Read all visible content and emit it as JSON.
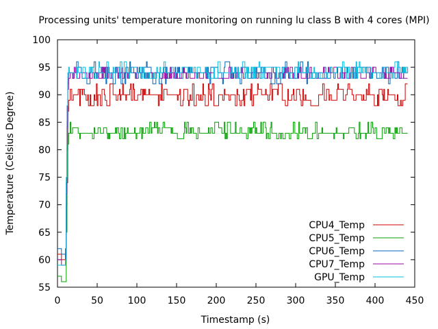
{
  "chart_data": {
    "type": "line",
    "title": "Processing units' temperature monitoring on running lu class B with 4 cores (MPI)",
    "xlabel": "Timestamp (s)",
    "ylabel": "Temperature (Celsius Degree)",
    "xlim": [
      0,
      450
    ],
    "ylim": [
      55,
      100
    ],
    "xticks": [
      0,
      50,
      100,
      150,
      200,
      250,
      300,
      350,
      400,
      450
    ],
    "yticks": [
      55,
      60,
      65,
      70,
      75,
      80,
      85,
      90,
      95,
      100
    ],
    "grid": false,
    "legend_position": "bottom-right",
    "x_end": 441,
    "series": [
      {
        "name": "CPU4_Temp",
        "color": "#cc0000",
        "startup": [
          [
            0,
            61
          ],
          [
            4,
            61
          ],
          [
            5,
            60
          ],
          [
            9,
            60
          ],
          [
            10,
            61
          ],
          [
            11,
            70
          ],
          [
            12,
            80
          ],
          [
            13,
            87
          ],
          [
            14,
            89
          ]
        ],
        "plateau": {
          "base": 89,
          "levels": [
            88,
            89,
            90,
            91,
            92
          ],
          "weights": [
            2,
            4,
            5,
            3,
            1
          ]
        }
      },
      {
        "name": "CPU5_Temp",
        "color": "#00a000",
        "startup": [
          [
            0,
            57
          ],
          [
            4,
            57
          ],
          [
            5,
            56
          ],
          [
            10,
            56
          ],
          [
            11,
            65
          ],
          [
            12,
            74
          ],
          [
            13,
            81
          ],
          [
            14,
            83
          ]
        ],
        "plateau": {
          "base": 83,
          "levels": [
            82,
            83,
            84,
            85
          ],
          "weights": [
            2,
            7,
            3,
            1
          ]
        }
      },
      {
        "name": "CPU6_Temp",
        "color": "#0066bb",
        "startup": [
          [
            0,
            62
          ],
          [
            4,
            62
          ],
          [
            5,
            61
          ],
          [
            9,
            61
          ],
          [
            10,
            62
          ],
          [
            11,
            74
          ],
          [
            12,
            85
          ],
          [
            13,
            92
          ],
          [
            14,
            94
          ]
        ],
        "plateau": {
          "base": 94,
          "levels": [
            92,
            93,
            94,
            95,
            96
          ],
          "weights": [
            1,
            4,
            6,
            4,
            1
          ]
        }
      },
      {
        "name": "CPU7_Temp",
        "color": "#a000a0",
        "startup": [
          [
            0,
            60
          ],
          [
            4,
            60
          ],
          [
            5,
            59
          ],
          [
            9,
            59
          ],
          [
            10,
            60
          ],
          [
            11,
            72
          ],
          [
            12,
            84
          ],
          [
            13,
            91
          ],
          [
            14,
            93
          ]
        ],
        "plateau": {
          "base": 93,
          "levels": [
            93,
            94,
            95
          ],
          "weights": [
            3,
            5,
            2
          ]
        }
      },
      {
        "name": "GPU_Temp",
        "color": "#00c0e0",
        "startup": [
          [
            0,
            59
          ],
          [
            4,
            59
          ],
          [
            5,
            59
          ],
          [
            9,
            59
          ],
          [
            10,
            60
          ],
          [
            11,
            75
          ],
          [
            12,
            88
          ],
          [
            13,
            94
          ],
          [
            14,
            95
          ]
        ],
        "plateau": {
          "base": 94,
          "levels": [
            93,
            94,
            95,
            96
          ],
          "weights": [
            3,
            6,
            4,
            1
          ]
        }
      }
    ]
  }
}
